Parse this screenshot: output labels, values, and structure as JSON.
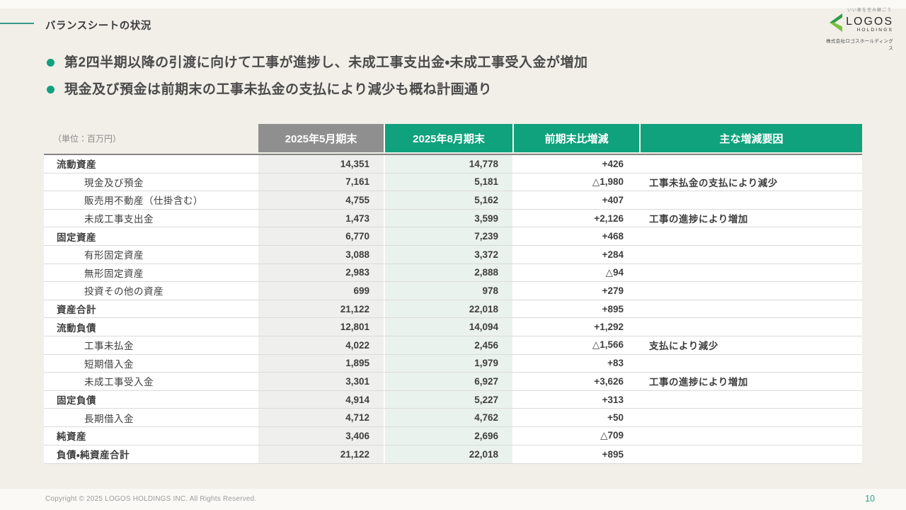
{
  "slide": {
    "title": "バランスシートの状況",
    "page_number": "10",
    "copyright": "Copyright © 2025 LOGOS HOLDINGS INC. All Rights Reserved."
  },
  "logo": {
    "tagline": "いい家を住み継ごう",
    "name": "LOGOS",
    "sub": "HOLDINGS",
    "company": "株式会社ロゴスホールディングス"
  },
  "bullets": [
    "第2四半期以降の引渡に向けて工事が進捗し、未成工事支出金・未成工事受入金が増加",
    "現金及び預金は前期末の工事未払金の支払により減少も概ね計画通り"
  ],
  "table": {
    "unit_label": "（単位：百万円）",
    "headers": [
      "2025年5月期末",
      "2025年8月期末",
      "前期末比増減",
      "主な増減要因"
    ],
    "rows": [
      {
        "label": "流動資産",
        "bold": true,
        "v1": "14,351",
        "v2": "14,778",
        "delta": "+426",
        "note": ""
      },
      {
        "label": "現金及び預金",
        "bold": false,
        "v1": "7,161",
        "v2": "5,181",
        "delta": "△1,980",
        "note": "工事未払金の支払により減少"
      },
      {
        "label": "販売用不動産（仕掛含む）",
        "bold": false,
        "v1": "4,755",
        "v2": "5,162",
        "delta": "+407",
        "note": ""
      },
      {
        "label": "未成工事支出金",
        "bold": false,
        "v1": "1,473",
        "v2": "3,599",
        "delta": "+2,126",
        "note": "工事の進捗により増加"
      },
      {
        "label": "固定資産",
        "bold": true,
        "v1": "6,770",
        "v2": "7,239",
        "delta": "+468",
        "note": ""
      },
      {
        "label": "有形固定資産",
        "bold": false,
        "v1": "3,088",
        "v2": "3,372",
        "delta": "+284",
        "note": ""
      },
      {
        "label": "無形固定資産",
        "bold": false,
        "v1": "2,983",
        "v2": "2,888",
        "delta": "△94",
        "note": ""
      },
      {
        "label": "投資その他の資産",
        "bold": false,
        "v1": "699",
        "v2": "978",
        "delta": "+279",
        "note": ""
      },
      {
        "label": "資産合計",
        "bold": true,
        "v1": "21,122",
        "v2": "22,018",
        "delta": "+895",
        "note": ""
      },
      {
        "label": "流動負債",
        "bold": true,
        "v1": "12,801",
        "v2": "14,094",
        "delta": "+1,292",
        "note": ""
      },
      {
        "label": "工事未払金",
        "bold": false,
        "v1": "4,022",
        "v2": "2,456",
        "delta": "△1,566",
        "note": "支払により減少"
      },
      {
        "label": "短期借入金",
        "bold": false,
        "v1": "1,895",
        "v2": "1,979",
        "delta": "+83",
        "note": ""
      },
      {
        "label": "未成工事受入金",
        "bold": false,
        "v1": "3,301",
        "v2": "6,927",
        "delta": "+3,626",
        "note": "工事の進捗により増加"
      },
      {
        "label": "固定負債",
        "bold": true,
        "v1": "4,914",
        "v2": "5,227",
        "delta": "+313",
        "note": ""
      },
      {
        "label": "長期借入金",
        "bold": false,
        "v1": "4,712",
        "v2": "4,762",
        "delta": "+50",
        "note": ""
      },
      {
        "label": "純資産",
        "bold": true,
        "v1": "3,406",
        "v2": "2,696",
        "delta": "△709",
        "note": ""
      },
      {
        "label": "負債・純資産合計",
        "bold": true,
        "v1": "21,122",
        "v2": "22,018",
        "delta": "+895",
        "note": ""
      }
    ]
  },
  "colors": {
    "accent_green": "#10A17D",
    "header_gray": "#8F8F8F",
    "teal_line": "#35998C",
    "background": "#F1EFE8"
  }
}
